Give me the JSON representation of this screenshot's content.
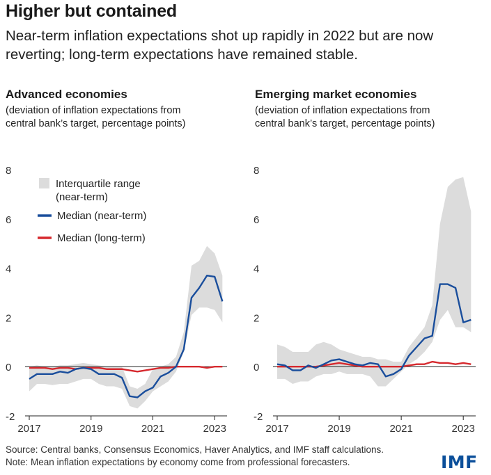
{
  "title": "Higher but contained",
  "subtitle": "Near-term inflation expectations shot up rapidly in 2022 but are now reverting; long-term expectations have remained stable.",
  "source": "Source: Central banks, Consensus Economics, Haver Analytics, and IMF staff calculations.",
  "note": "Note: Mean inflation expectations by economy come from professional forecasters.",
  "logo": "IMF",
  "colors": {
    "iqr": "#dcdcdc",
    "near": "#1a4e9c",
    "long": "#d6292e",
    "axis": "#222222"
  },
  "legend": {
    "iqr_line1": "Interquartile range",
    "iqr_line2": "(near-term)",
    "near": "Median (near-term)",
    "long": "Median (long-term)"
  },
  "chart_data": [
    {
      "type": "line",
      "title": "Advanced economies",
      "subtitle_line1": "(deviation of inflation expectations from",
      "subtitle_line2": "central bank’s target, percentage points)",
      "x_ticks": [
        2017,
        2019,
        2021,
        2023
      ],
      "y_ticks": [
        -2,
        0,
        2,
        4,
        6,
        8
      ],
      "xlim": [
        2017,
        2023.4
      ],
      "ylim": [
        -2,
        8
      ],
      "x": [
        2017.0,
        2017.25,
        2017.5,
        2017.75,
        2018.0,
        2018.25,
        2018.5,
        2018.75,
        2019.0,
        2019.25,
        2019.5,
        2019.75,
        2020.0,
        2020.25,
        2020.5,
        2020.75,
        2021.0,
        2021.25,
        2021.5,
        2021.75,
        2022.0,
        2022.25,
        2022.5,
        2022.75,
        2023.0,
        2023.25
      ],
      "series": [
        {
          "key": "iqr_low",
          "values": [
            -1.0,
            -0.7,
            -0.7,
            -0.75,
            -0.7,
            -0.7,
            -0.6,
            -0.5,
            -0.5,
            -0.7,
            -0.8,
            -0.8,
            -0.9,
            -1.6,
            -1.7,
            -1.4,
            -1.0,
            -0.8,
            -0.6,
            -0.2,
            0.6,
            2.1,
            2.4,
            2.4,
            2.3,
            1.8
          ]
        },
        {
          "key": "iqr_high",
          "values": [
            0.0,
            0.05,
            0.0,
            0.0,
            0.05,
            0.05,
            0.1,
            0.15,
            0.1,
            0.05,
            0.0,
            0.0,
            0.0,
            -0.8,
            -0.9,
            -0.7,
            -0.1,
            0.0,
            0.1,
            0.4,
            1.4,
            4.1,
            4.3,
            4.9,
            4.6,
            3.7
          ]
        },
        {
          "key": "near",
          "name": "Median (near-term)",
          "values": [
            -0.5,
            -0.3,
            -0.3,
            -0.3,
            -0.2,
            -0.25,
            -0.1,
            -0.05,
            -0.1,
            -0.3,
            -0.3,
            -0.3,
            -0.45,
            -1.2,
            -1.25,
            -1.0,
            -0.85,
            -0.4,
            -0.25,
            0.0,
            0.7,
            2.8,
            3.2,
            3.7,
            3.65,
            2.65
          ]
        },
        {
          "key": "long",
          "name": "Median (long-term)",
          "values": [
            -0.05,
            -0.05,
            -0.05,
            -0.1,
            -0.05,
            -0.05,
            -0.1,
            -0.05,
            -0.05,
            -0.05,
            -0.1,
            -0.1,
            -0.1,
            -0.15,
            -0.2,
            -0.15,
            -0.1,
            -0.05,
            -0.05,
            0.0,
            0.0,
            0.0,
            0.0,
            -0.05,
            0.0,
            0.0
          ]
        }
      ]
    },
    {
      "type": "line",
      "title": "Emerging market economies",
      "subtitle_line1": "(deviation of inflation expectations from",
      "subtitle_line2": "central bank’s target, percentage points)",
      "x_ticks": [
        2017,
        2019,
        2021,
        2023
      ],
      "y_ticks": [
        -2,
        0,
        2,
        4,
        6,
        8
      ],
      "xlim": [
        2017,
        2023.4
      ],
      "ylim": [
        -2,
        8
      ],
      "x": [
        2017.0,
        2017.25,
        2017.5,
        2017.75,
        2018.0,
        2018.25,
        2018.5,
        2018.75,
        2019.0,
        2019.25,
        2019.5,
        2019.75,
        2020.0,
        2020.25,
        2020.5,
        2020.75,
        2021.0,
        2021.25,
        2021.5,
        2021.75,
        2022.0,
        2022.25,
        2022.5,
        2022.75,
        2023.0,
        2023.25
      ],
      "series": [
        {
          "key": "iqr_low",
          "values": [
            -0.5,
            -0.5,
            -0.7,
            -0.6,
            -0.6,
            -0.4,
            -0.3,
            -0.3,
            -0.2,
            -0.3,
            -0.3,
            -0.3,
            -0.4,
            -0.8,
            -0.8,
            -0.5,
            -0.2,
            0.1,
            0.3,
            0.6,
            1.0,
            1.9,
            2.3,
            1.6,
            1.6,
            1.4
          ]
        },
        {
          "key": "iqr_high",
          "values": [
            0.9,
            0.8,
            0.6,
            0.6,
            0.6,
            0.9,
            1.0,
            0.9,
            0.7,
            0.6,
            0.5,
            0.4,
            0.4,
            0.3,
            0.3,
            0.2,
            0.2,
            0.8,
            1.2,
            1.6,
            2.5,
            5.8,
            7.3,
            7.6,
            7.7,
            6.3
          ]
        },
        {
          "key": "near",
          "name": "Median (near-term)",
          "values": [
            0.1,
            0.05,
            -0.15,
            -0.15,
            0.05,
            -0.05,
            0.1,
            0.25,
            0.3,
            0.2,
            0.1,
            0.05,
            0.15,
            0.1,
            -0.4,
            -0.3,
            -0.1,
            0.45,
            0.8,
            1.15,
            1.25,
            3.35,
            3.35,
            3.2,
            1.8,
            1.9
          ]
        },
        {
          "key": "long",
          "name": "Median (long-term)",
          "values": [
            0.0,
            0.0,
            0.0,
            0.0,
            0.0,
            0.0,
            0.05,
            0.1,
            0.15,
            0.1,
            0.05,
            0.0,
            0.0,
            0.0,
            0.0,
            0.0,
            0.0,
            0.05,
            0.1,
            0.1,
            0.2,
            0.15,
            0.15,
            0.1,
            0.15,
            0.1
          ]
        }
      ]
    }
  ]
}
